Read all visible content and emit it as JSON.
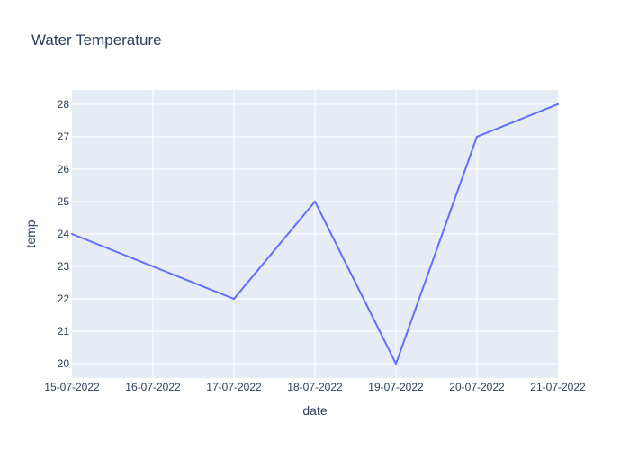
{
  "chart_data": {
    "type": "line",
    "title": "Water Temperature",
    "xlabel": "date",
    "ylabel": "temp",
    "x": [
      "15-07-2022",
      "16-07-2022",
      "17-07-2022",
      "18-07-2022",
      "19-07-2022",
      "20-07-2022",
      "21-07-2022"
    ],
    "series": [
      {
        "points": [
          {
            "x": "15-07-2022",
            "y": 24
          },
          {
            "x": "17-07-2022",
            "y": 22
          },
          {
            "x": "18-07-2022",
            "y": 25
          },
          {
            "x": "19-07-2022",
            "y": 20
          },
          {
            "x": "20-07-2022",
            "y": 27
          },
          {
            "x": "21-07-2022",
            "y": 28
          }
        ]
      }
    ],
    "ylim": [
      19.56,
      28.44
    ],
    "yticks": [
      20,
      21,
      22,
      23,
      24,
      25,
      26,
      27,
      28
    ],
    "grid": true,
    "colors": {
      "line": "#636efa",
      "plot_bg": "#e5ecf6",
      "grid": "#ffffff",
      "text": "#2a3f5f"
    }
  }
}
